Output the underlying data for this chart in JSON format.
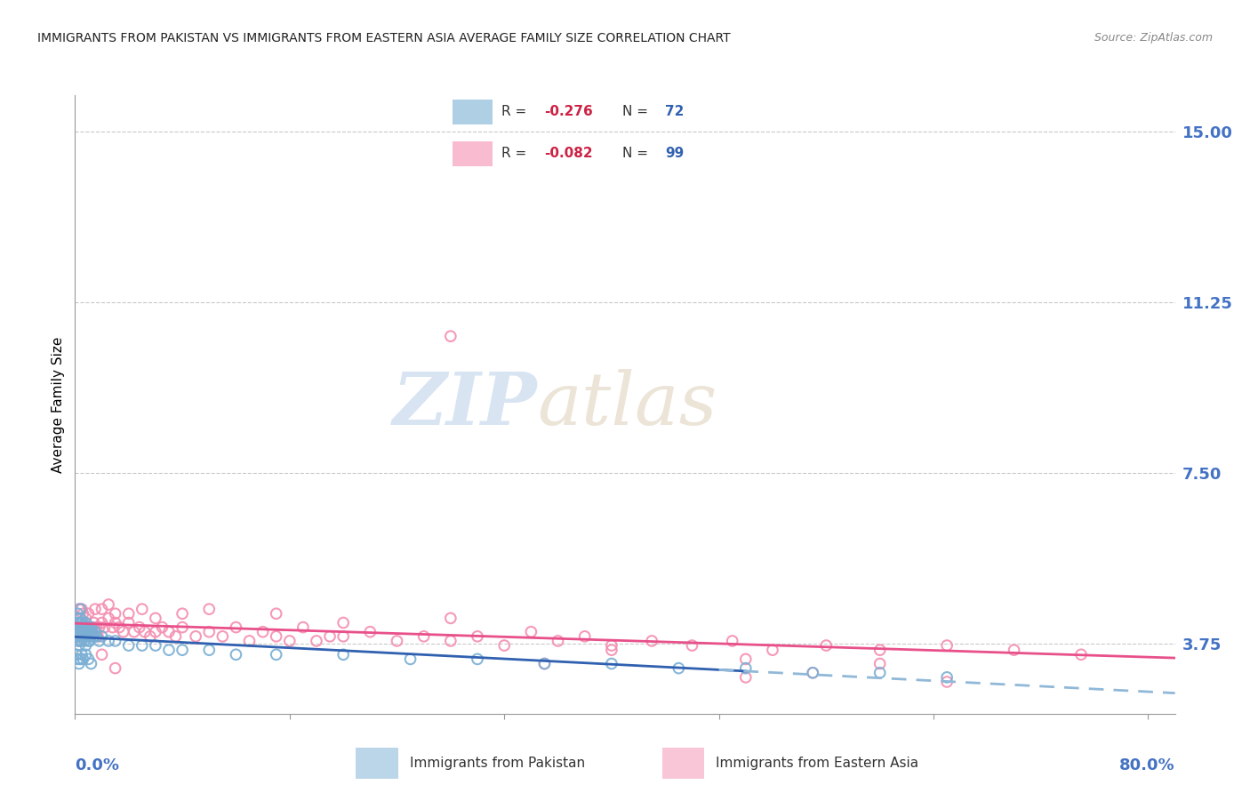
{
  "title": "IMMIGRANTS FROM PAKISTAN VS IMMIGRANTS FROM EASTERN ASIA AVERAGE FAMILY SIZE CORRELATION CHART",
  "source": "Source: ZipAtlas.com",
  "ylabel": "Average Family Size",
  "yticks": [
    3.75,
    7.5,
    11.25,
    15.0
  ],
  "ytick_labels": [
    "3.75",
    "7.50",
    "11.25",
    "15.00"
  ],
  "ytick_color": "#4472c4",
  "xtick_color": "#4472c4",
  "watermark_zip": "ZIP",
  "watermark_atlas": "atlas",
  "pakistan_color": "#7bafd4",
  "eastern_asia_color": "#f48fb1",
  "pakistan_line_color": "#3060b0",
  "pakistan_dash_color": "#90b8d8",
  "eastern_asia_line_color": "#e8508a",
  "background": "#ffffff",
  "grid_color": "#bbbbbb",
  "ylim": [
    2.2,
    15.8
  ],
  "xlim": [
    0.0,
    0.82
  ],
  "legend_R1": "-0.276",
  "legend_N1": "72",
  "legend_R2": "-0.082",
  "legend_N2": "99",
  "pakistan_scatter_x": [
    0.001,
    0.001,
    0.001,
    0.002,
    0.002,
    0.002,
    0.002,
    0.003,
    0.003,
    0.003,
    0.003,
    0.004,
    0.004,
    0.004,
    0.004,
    0.005,
    0.005,
    0.005,
    0.005,
    0.006,
    0.006,
    0.006,
    0.007,
    0.007,
    0.007,
    0.008,
    0.008,
    0.008,
    0.009,
    0.009,
    0.01,
    0.01,
    0.01,
    0.011,
    0.011,
    0.012,
    0.012,
    0.013,
    0.014,
    0.015,
    0.016,
    0.018,
    0.02,
    0.025,
    0.03,
    0.04,
    0.05,
    0.06,
    0.07,
    0.08,
    0.1,
    0.12,
    0.15,
    0.2,
    0.25,
    0.3,
    0.35,
    0.4,
    0.45,
    0.5,
    0.55,
    0.6,
    0.65,
    0.001,
    0.002,
    0.003,
    0.004,
    0.005,
    0.006,
    0.008,
    0.01,
    0.012
  ],
  "pakistan_scatter_y": [
    4.1,
    3.9,
    4.3,
    4.0,
    4.2,
    3.8,
    4.4,
    4.0,
    3.9,
    4.2,
    3.7,
    4.1,
    3.8,
    4.3,
    4.5,
    4.0,
    4.2,
    3.8,
    4.1,
    4.0,
    3.9,
    4.2,
    3.9,
    4.1,
    3.8,
    4.0,
    4.2,
    3.7,
    4.1,
    3.9,
    4.0,
    3.8,
    4.1,
    4.0,
    3.8,
    4.1,
    3.9,
    4.0,
    3.9,
    4.0,
    3.9,
    3.8,
    3.9,
    3.8,
    3.8,
    3.7,
    3.7,
    3.7,
    3.6,
    3.6,
    3.6,
    3.5,
    3.5,
    3.5,
    3.4,
    3.4,
    3.3,
    3.3,
    3.2,
    3.2,
    3.1,
    3.1,
    3.0,
    3.5,
    3.4,
    3.3,
    3.4,
    3.5,
    3.4,
    3.5,
    3.4,
    3.3
  ],
  "eastern_asia_scatter_x": [
    0.001,
    0.002,
    0.002,
    0.003,
    0.003,
    0.004,
    0.004,
    0.005,
    0.005,
    0.006,
    0.006,
    0.007,
    0.008,
    0.009,
    0.01,
    0.011,
    0.012,
    0.013,
    0.014,
    0.015,
    0.016,
    0.017,
    0.018,
    0.02,
    0.022,
    0.025,
    0.028,
    0.03,
    0.033,
    0.036,
    0.04,
    0.044,
    0.048,
    0.052,
    0.056,
    0.06,
    0.065,
    0.07,
    0.075,
    0.08,
    0.09,
    0.1,
    0.11,
    0.12,
    0.13,
    0.14,
    0.15,
    0.16,
    0.17,
    0.18,
    0.19,
    0.2,
    0.22,
    0.24,
    0.26,
    0.28,
    0.3,
    0.32,
    0.34,
    0.36,
    0.38,
    0.4,
    0.43,
    0.46,
    0.49,
    0.52,
    0.56,
    0.6,
    0.65,
    0.7,
    0.75,
    0.003,
    0.004,
    0.005,
    0.006,
    0.008,
    0.01,
    0.015,
    0.02,
    0.025,
    0.03,
    0.04,
    0.05,
    0.06,
    0.08,
    0.1,
    0.15,
    0.2,
    0.28,
    0.4,
    0.5,
    0.6,
    0.28,
    0.35,
    0.5,
    0.55,
    0.65,
    0.02,
    0.03
  ],
  "eastern_asia_scatter_y": [
    4.0,
    4.1,
    3.9,
    4.2,
    3.8,
    4.1,
    4.0,
    3.9,
    4.2,
    4.0,
    3.9,
    4.1,
    4.0,
    3.9,
    4.1,
    4.0,
    4.0,
    4.1,
    4.2,
    4.0,
    4.1,
    3.9,
    4.1,
    4.2,
    4.1,
    4.3,
    4.1,
    4.2,
    4.1,
    4.0,
    4.2,
    4.0,
    4.1,
    4.0,
    3.9,
    4.0,
    4.1,
    4.0,
    3.9,
    4.1,
    3.9,
    4.0,
    3.9,
    4.1,
    3.8,
    4.0,
    3.9,
    3.8,
    4.1,
    3.8,
    3.9,
    3.9,
    4.0,
    3.8,
    3.9,
    3.8,
    3.9,
    3.7,
    4.0,
    3.8,
    3.9,
    3.7,
    3.8,
    3.7,
    3.8,
    3.6,
    3.7,
    3.6,
    3.7,
    3.6,
    3.5,
    4.5,
    4.3,
    4.5,
    4.4,
    4.3,
    4.4,
    4.5,
    4.5,
    4.6,
    4.4,
    4.4,
    4.5,
    4.3,
    4.4,
    4.5,
    4.4,
    4.2,
    4.3,
    3.6,
    3.4,
    3.3,
    10.5,
    3.3,
    3.0,
    3.1,
    2.9,
    3.5,
    3.2
  ]
}
